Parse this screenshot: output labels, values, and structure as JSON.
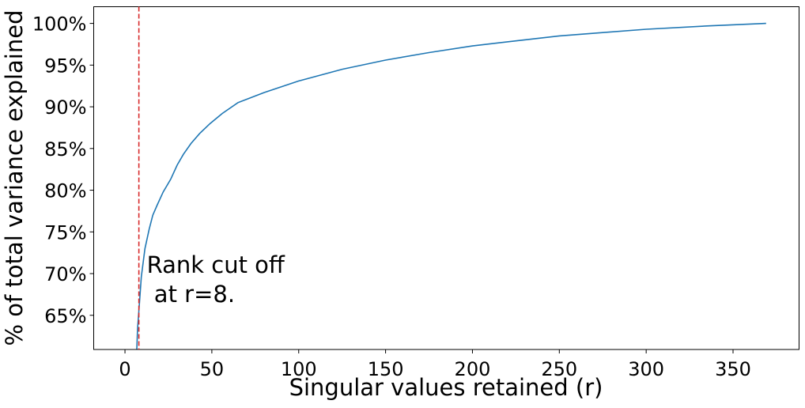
{
  "chart_data": {
    "type": "line",
    "title": "",
    "xlabel": "Singular values retained (r)",
    "ylabel": "% of total variance explained",
    "xlim": [
      -18,
      388
    ],
    "ylim": [
      60.9,
      102
    ],
    "grid": false,
    "x_ticks": [
      0,
      50,
      100,
      150,
      200,
      250,
      300,
      350
    ],
    "y_ticks": [
      65,
      70,
      75,
      80,
      85,
      90,
      95,
      100
    ],
    "y_tick_format": "%",
    "series": [
      {
        "color": "#1f77b4",
        "points": [
          [
            6.8,
            60.9
          ],
          [
            7.2,
            63.3
          ],
          [
            8,
            65.5
          ],
          [
            9.4,
            69.6
          ],
          [
            11.5,
            73
          ],
          [
            13.9,
            75.3
          ],
          [
            16,
            77
          ],
          [
            18.5,
            78.2
          ],
          [
            22,
            79.8
          ],
          [
            26.3,
            81.3
          ],
          [
            30,
            83
          ],
          [
            33.6,
            84.3
          ],
          [
            38,
            85.6
          ],
          [
            43,
            86.8
          ],
          [
            49,
            88
          ],
          [
            56,
            89.2
          ],
          [
            65,
            90.5
          ],
          [
            80,
            91.7
          ],
          [
            100,
            93.1
          ],
          [
            125,
            94.5
          ],
          [
            150,
            95.6
          ],
          [
            175,
            96.5
          ],
          [
            200,
            97.3
          ],
          [
            225,
            97.9
          ],
          [
            250,
            98.5
          ],
          [
            275,
            98.9
          ],
          [
            300,
            99.3
          ],
          [
            335,
            99.7
          ],
          [
            369,
            100
          ]
        ]
      }
    ],
    "annotations": [
      {
        "type": "vline",
        "x": 8,
        "color": "#d62728",
        "style": "dashed"
      },
      {
        "type": "text",
        "lines": [
          "Rank cut off",
          " at r=8."
        ],
        "x": 13,
        "y": 65.5
      }
    ]
  }
}
